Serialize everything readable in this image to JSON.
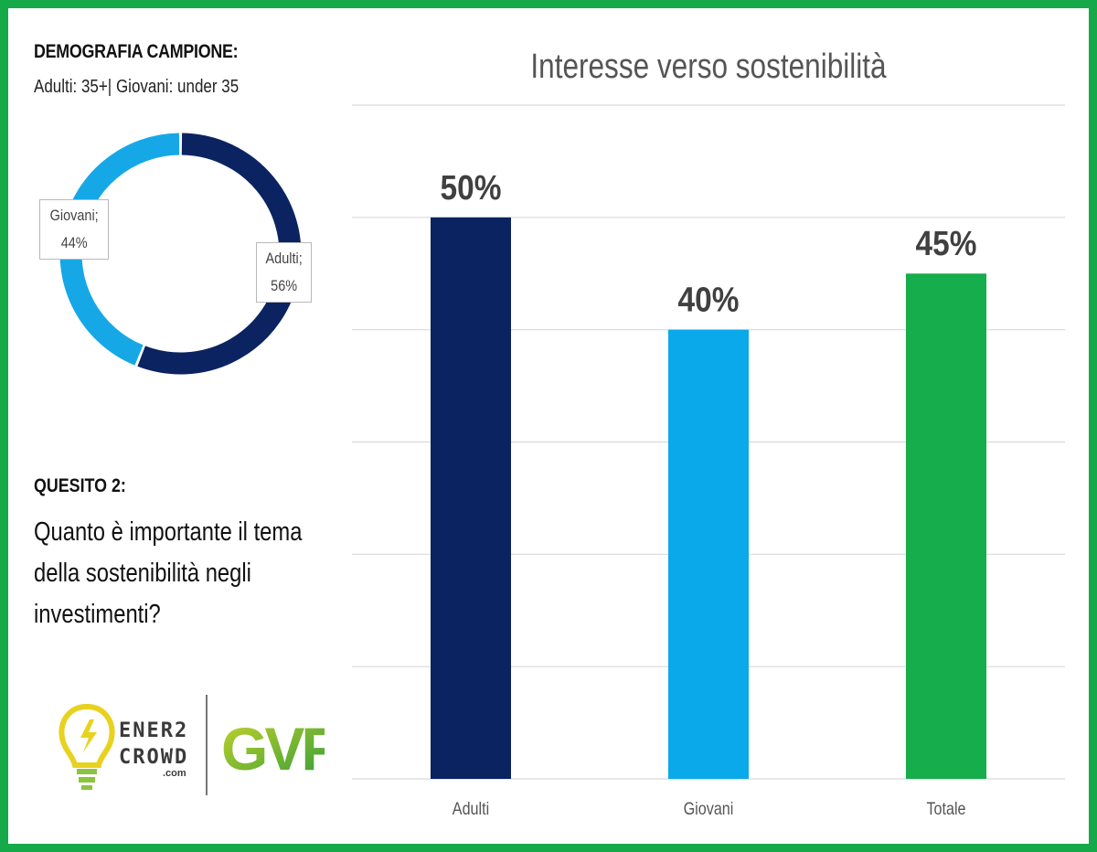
{
  "sample": {
    "title": "DEMOGRAFIA CAMPIONE:",
    "subtitle": "Adulti: 35+| Giovani: under 35"
  },
  "donut": {
    "segments": [
      {
        "label": "Adulti",
        "value": 56,
        "display": "Adulti;",
        "pct": "56%",
        "color": "#0b2361"
      },
      {
        "label": "Giovani",
        "value": 44,
        "display": "Giovani;",
        "pct": "44%",
        "color": "#16a8e6"
      }
    ]
  },
  "question": {
    "title": "QUESITO 2:",
    "text": "Quanto è importante il tema della sostenibilità negli investimenti?"
  },
  "logos": {
    "ener2crowd_line1": "ENER2",
    "ener2crowd_line2": "CROWD",
    "ener2crowd_suffix": ".com",
    "gvf": "GVF"
  },
  "chart_data": {
    "type": "bar",
    "title": "Interesse verso sostenibilità",
    "categories": [
      "Adulti",
      "Giovani",
      "Totale"
    ],
    "values": [
      50,
      40,
      45
    ],
    "value_labels": [
      "50%",
      "40%",
      "45%"
    ],
    "colors": [
      "#0b2361",
      "#0aa9ea",
      "#16ad4c"
    ],
    "ylim": [
      0,
      60
    ],
    "grid": true,
    "xlabel": "",
    "ylabel": ""
  }
}
